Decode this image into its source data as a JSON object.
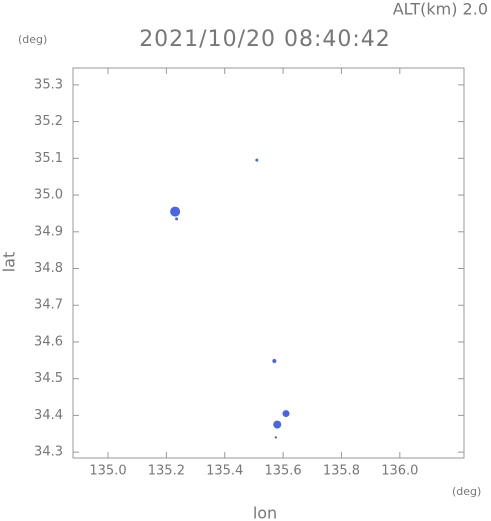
{
  "chart_data": {
    "type": "scatter",
    "title": "2021/10/20 08:40:42",
    "subtitle": "ALT(km) 2.0",
    "x_label": "lon",
    "y_label": "lat",
    "x_unit": "(deg)",
    "y_unit": "(deg)",
    "xlim": [
      134.88,
      136.22
    ],
    "ylim": [
      34.284,
      35.346
    ],
    "xticks": [
      {
        "value": 135.0,
        "label": "135.0"
      },
      135.2,
      135.4,
      135.6,
      135.8,
      {
        "value": 136.0,
        "label": "136.0"
      }
    ],
    "yticks": [
      34.3,
      34.4,
      34.5,
      34.6,
      34.7,
      34.8,
      34.9,
      {
        "value": 35.0,
        "label": "35.0"
      },
      35.1,
      35.2,
      35.3
    ],
    "series": [
      {
        "color": "#4a64e8",
        "x": [
          135.51,
          135.23,
          135.235,
          135.57,
          135.61,
          135.58,
          135.575
        ],
        "values": [
          35.095,
          34.955,
          34.935,
          34.548,
          34.405,
          34.375,
          34.34
        ],
        "sizes": [
          1.5,
          5,
          1.5,
          2,
          3.5,
          4,
          1.2
        ]
      }
    ]
  }
}
